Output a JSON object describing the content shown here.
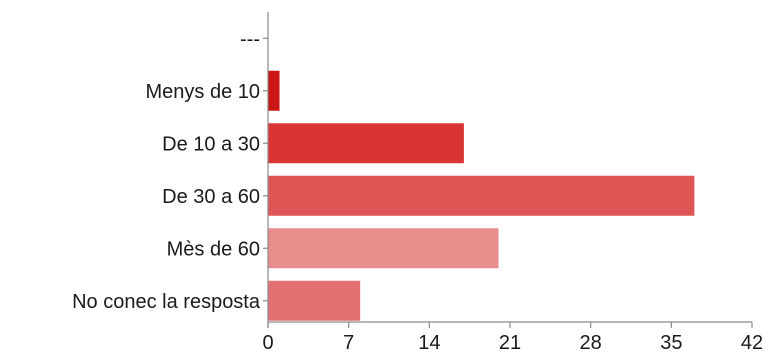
{
  "chart_data": {
    "type": "bar",
    "orientation": "horizontal",
    "categories": [
      "---",
      "Menys de 10",
      "De 10 a 30",
      "De 30 a 60",
      "Mès de 60",
      "No conec la resposta"
    ],
    "values": [
      0,
      1,
      17,
      37,
      20,
      8
    ],
    "colors": [
      "#d92b2b",
      "#cc1515",
      "#d93535",
      "#df5454",
      "#e88c8c",
      "#e27272"
    ],
    "xlim": [
      0,
      42
    ],
    "xticks": [
      0,
      7,
      14,
      21,
      28,
      35,
      42
    ],
    "title": "",
    "xlabel": "",
    "ylabel": "",
    "grid": false
  }
}
